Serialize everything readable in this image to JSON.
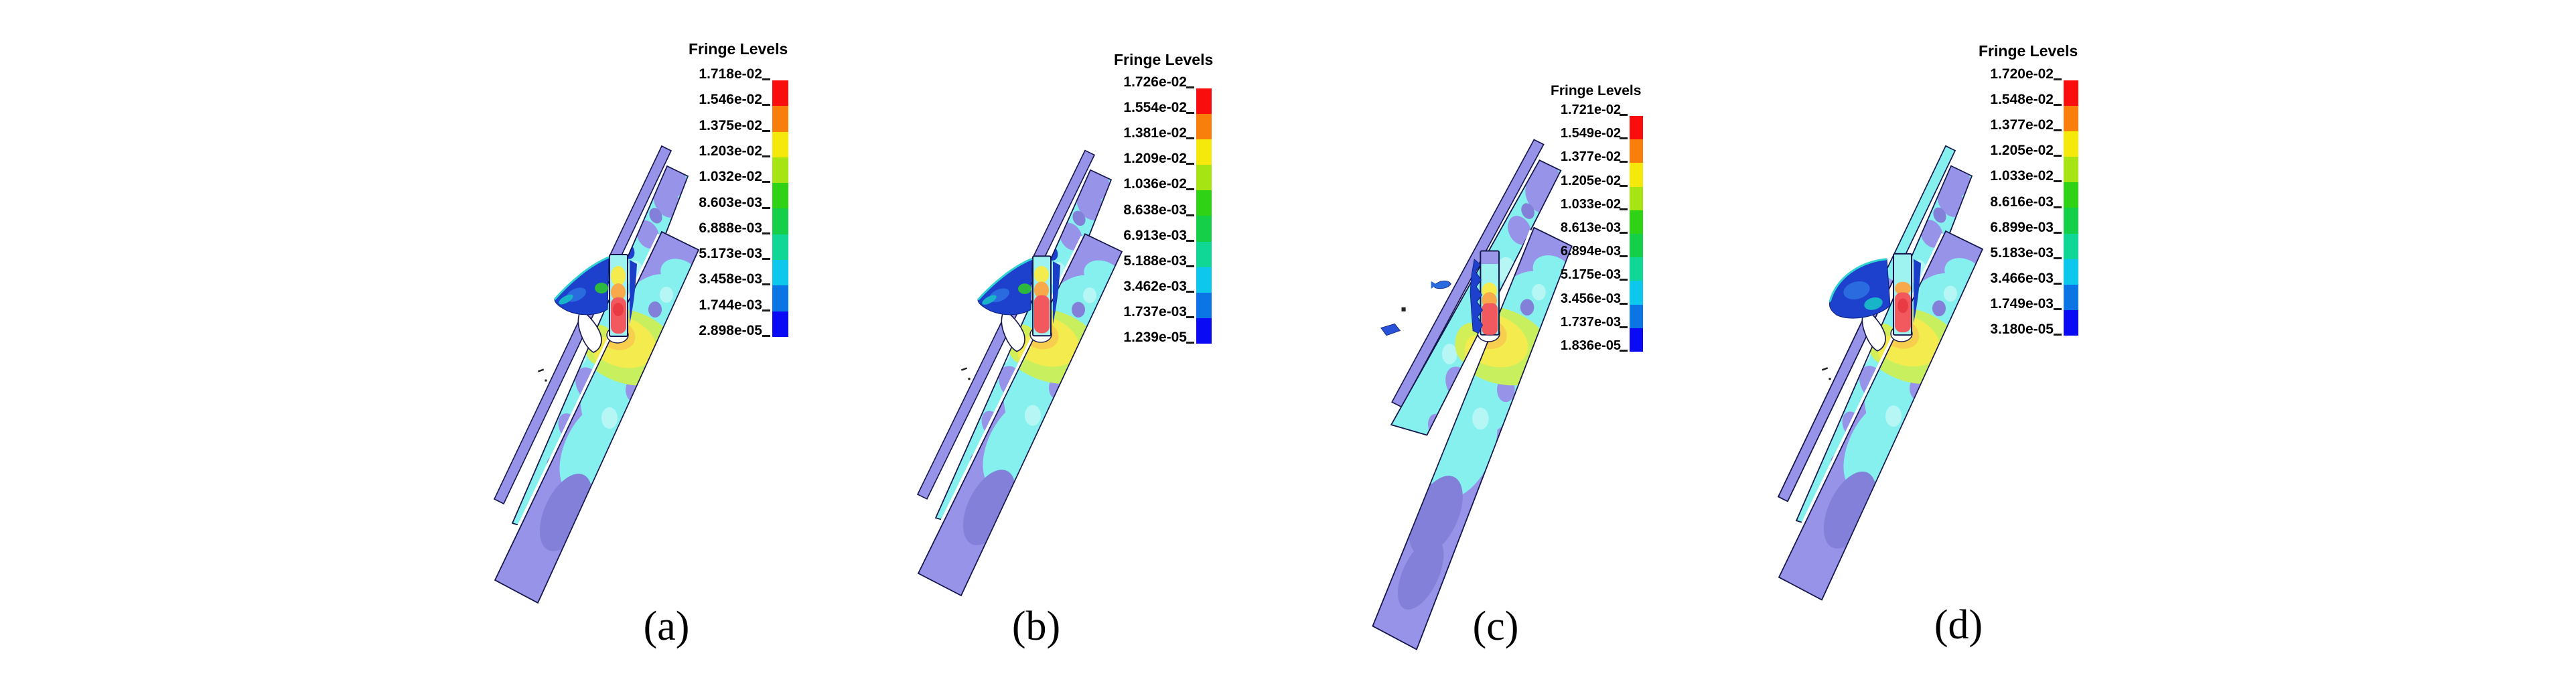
{
  "figure_type": "finite-element simulation fringe plots, 4 cases",
  "legend_title": "Fringe Levels",
  "legend_colors": [
    "#f90d0d",
    "#f97f0d",
    "#f5e90c",
    "#a7e414",
    "#2fd214",
    "#16cf49",
    "#10d795",
    "#0ec7ec",
    "#0c75e6",
    "#0a0af4"
  ],
  "panels": [
    {
      "id": "a",
      "label": "(a)",
      "fringe_levels": [
        "1.718e-02",
        "1.546e-02",
        "1.375e-02",
        "1.203e-02",
        "1.032e-02",
        "8.603e-03",
        "6.888e-03",
        "5.173e-03",
        "3.458e-03",
        "1.744e-03",
        "2.898e-05"
      ]
    },
    {
      "id": "b",
      "label": "(b)",
      "fringe_levels": [
        "1.726e-02",
        "1.554e-02",
        "1.381e-02",
        "1.209e-02",
        "1.036e-02",
        "8.638e-03",
        "6.913e-03",
        "5.188e-03",
        "3.462e-03",
        "1.737e-03",
        "1.239e-05"
      ]
    },
    {
      "id": "c",
      "label": "(c)",
      "fringe_levels": [
        "1.721e-02",
        "1.549e-02",
        "1.377e-02",
        "1.205e-02",
        "1.033e-02",
        "8.613e-03",
        "6.894e-03",
        "5.175e-03",
        "3.456e-03",
        "1.737e-03",
        "1.836e-05"
      ]
    },
    {
      "id": "d",
      "label": "(d)",
      "fringe_levels": [
        "1.720e-02",
        "1.548e-02",
        "1.377e-02",
        "1.205e-02",
        "1.033e-02",
        "8.616e-03",
        "6.899e-03",
        "5.183e-03",
        "3.466e-03",
        "1.749e-03",
        "3.180e-05"
      ]
    }
  ],
  "model_colors": {
    "plate": "#9693e8",
    "plate_dark": "#8280d8",
    "fringe_cyan": "#86f0ee",
    "fringe_pale": "#b6f7f5",
    "halo_green": "#c8ef5e",
    "halo_yellow": "#f4ec4e",
    "halo_orange": "#f7ce4e",
    "bolt_fill": "#9ef2f0",
    "bolt_red": "#f2595e",
    "bolt_orange": "#f7a94b",
    "flap_blue": "#1d41cc",
    "flap_blue_mid": "#2a6ce0",
    "flap_teal": "#18b5c8",
    "flap_green": "#2db83e",
    "outline": "#15154d"
  }
}
